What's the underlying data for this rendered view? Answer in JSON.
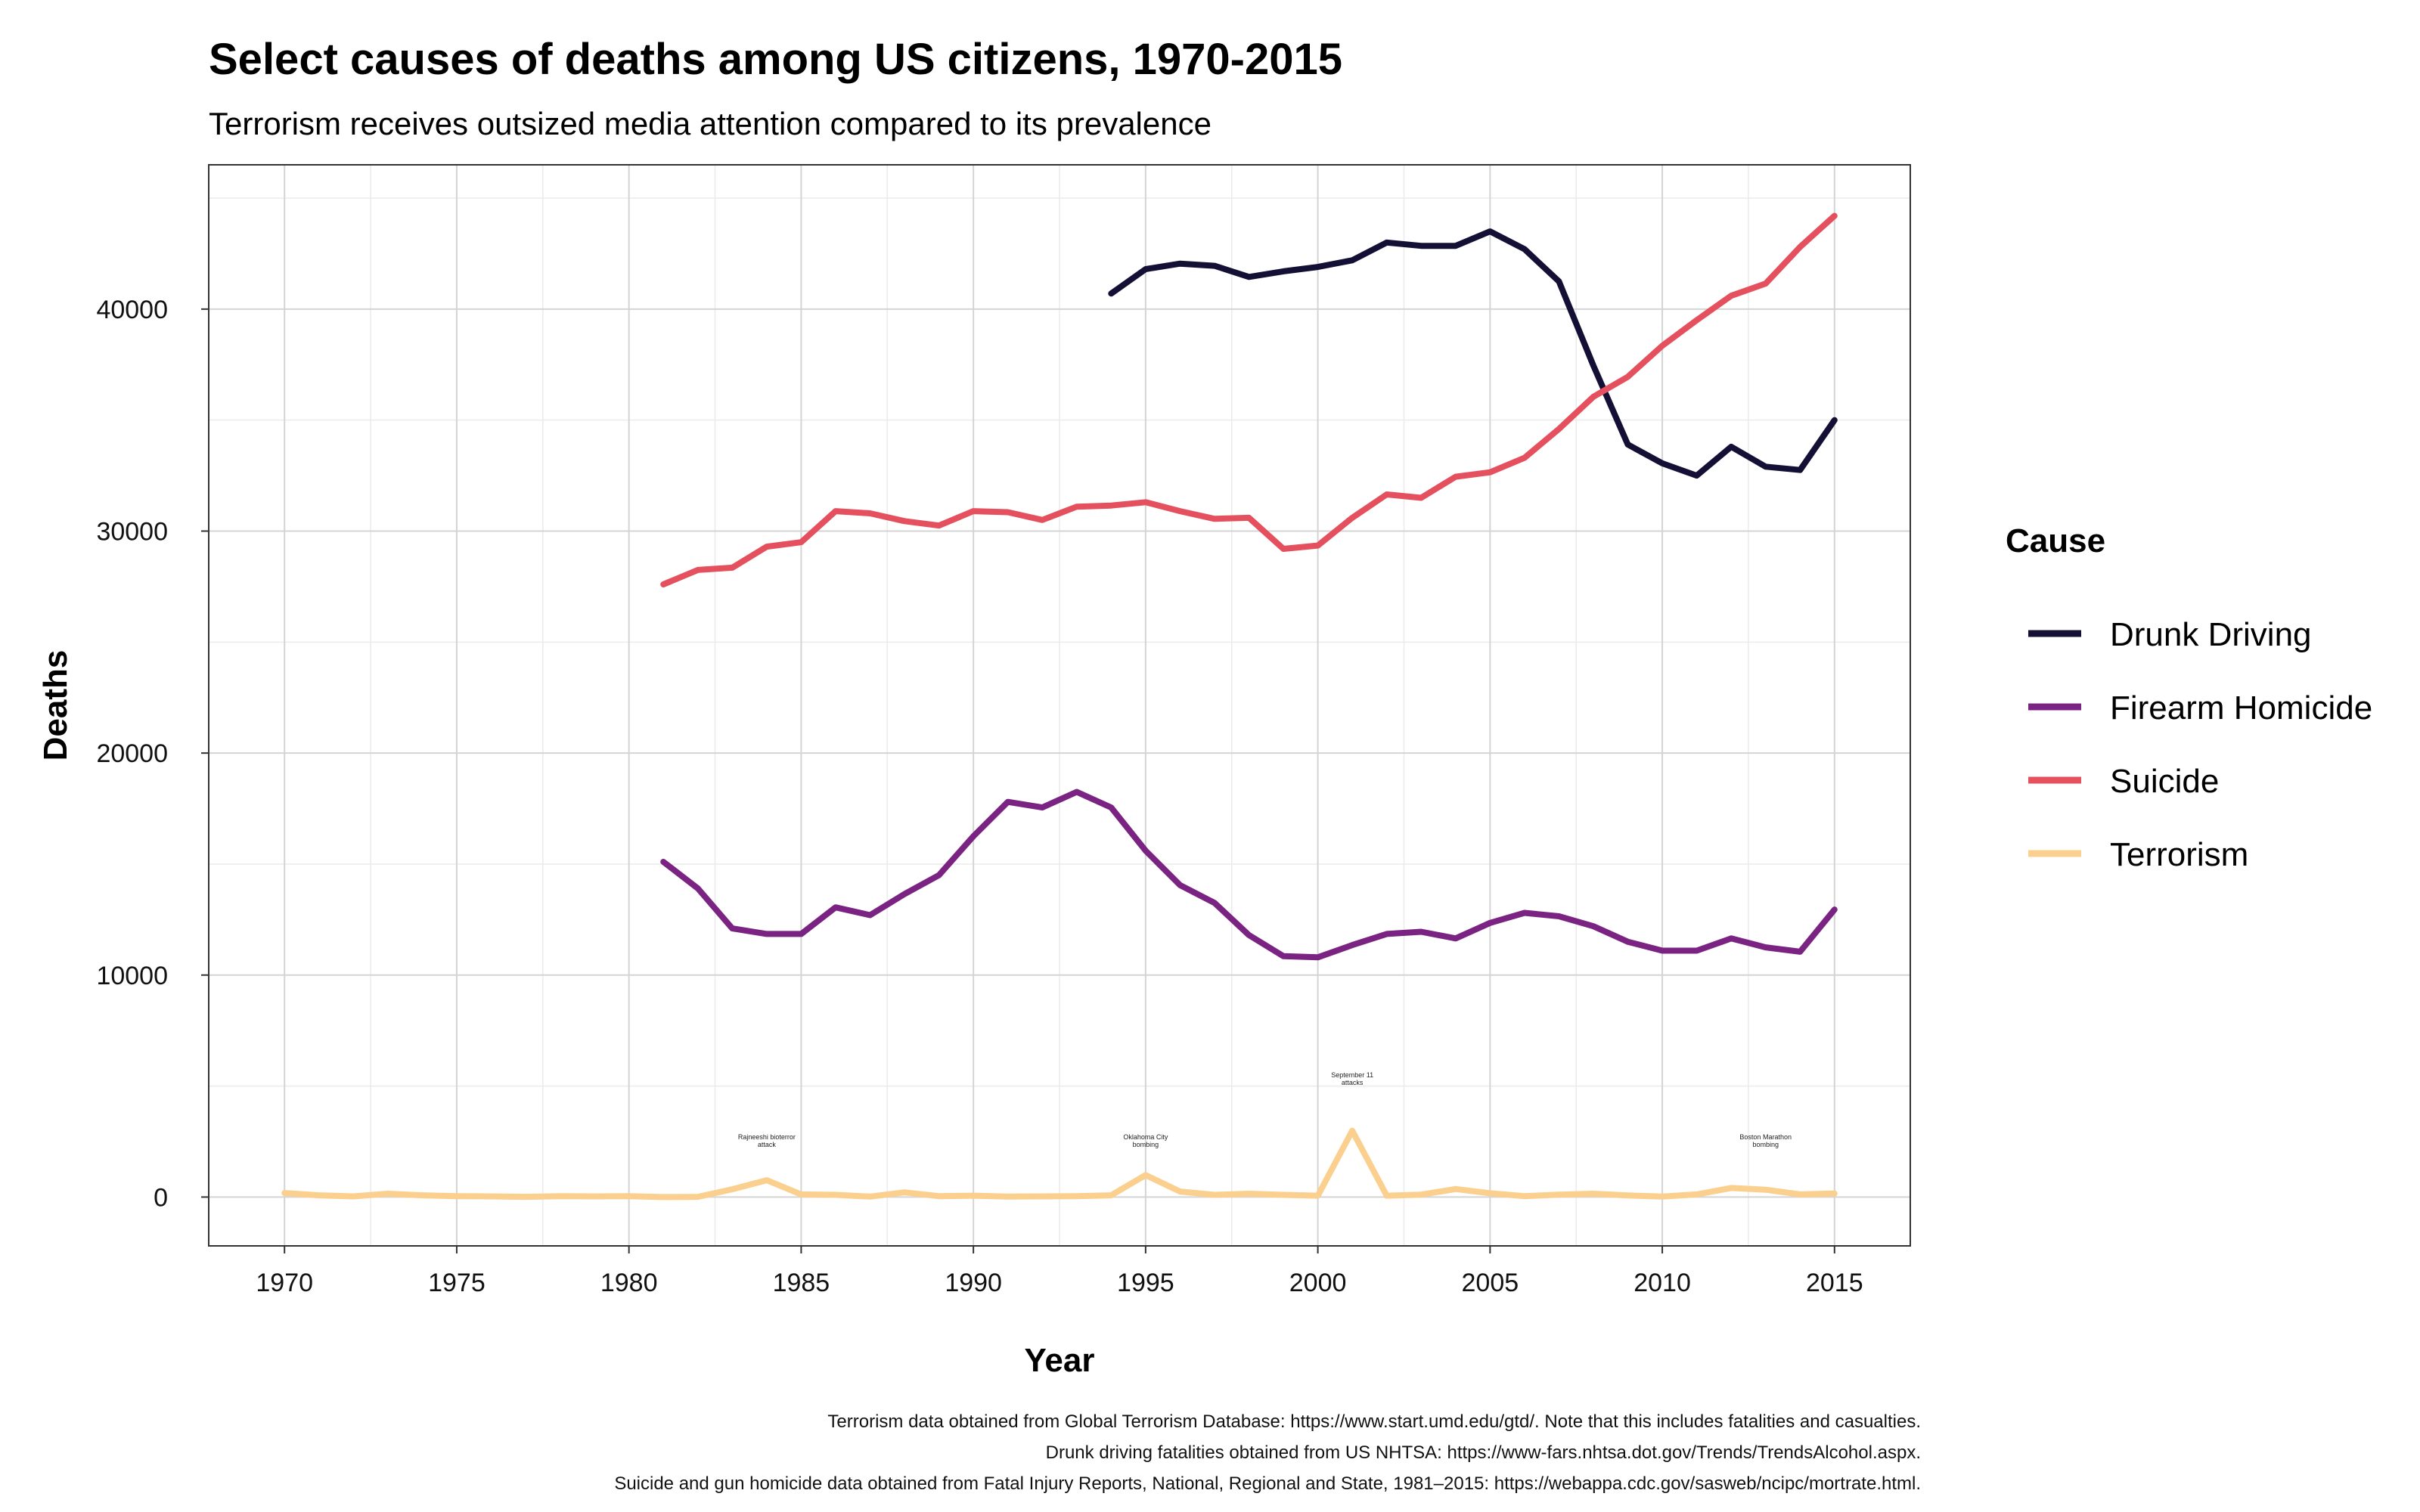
{
  "chart_data": {
    "type": "line",
    "title": "Select causes of deaths among US citizens, 1970-2015",
    "subtitle": "Terrorism receives outsized media attention compared to its prevalence",
    "xlabel": "Year",
    "ylabel": "Deaths",
    "xlim": [
      1967.8,
      2017.2
    ],
    "ylim": [
      -2200,
      46500
    ],
    "x_ticks": [
      1970,
      1975,
      1980,
      1985,
      1990,
      1995,
      2000,
      2005,
      2010,
      2015
    ],
    "y_ticks": [
      0,
      10000,
      20000,
      30000,
      40000
    ],
    "grid": true,
    "legend": {
      "title": "Cause",
      "position": "right"
    },
    "series": [
      {
        "name": "Drunk Driving",
        "color": "#140f35",
        "x": [
          1994,
          1995,
          1996,
          1997,
          1998,
          1999,
          2000,
          2001,
          2002,
          2003,
          2004,
          2005,
          2006,
          2007,
          2008,
          2009,
          2010,
          2011,
          2012,
          2013,
          2014,
          2015
        ],
        "values": [
          40700,
          41800,
          42050,
          41950,
          41450,
          41700,
          41900,
          42200,
          43000,
          42850,
          42850,
          43500,
          42700,
          41250,
          37450,
          33900,
          33050,
          32500,
          33800,
          32900,
          32750,
          35000
        ]
      },
      {
        "name": "Firearm Homicide",
        "color": "#7b2382",
        "x": [
          1981,
          1982,
          1983,
          1984,
          1985,
          1986,
          1987,
          1988,
          1989,
          1990,
          1991,
          1992,
          1993,
          1994,
          1995,
          1996,
          1997,
          1998,
          1999,
          2000,
          2001,
          2002,
          2003,
          2004,
          2005,
          2006,
          2007,
          2008,
          2009,
          2010,
          2011,
          2012,
          2013,
          2014,
          2015
        ],
        "values": [
          15100,
          13900,
          12100,
          11850,
          11850,
          13050,
          12700,
          13650,
          14500,
          16250,
          17800,
          17550,
          18250,
          17550,
          15600,
          14050,
          13250,
          11800,
          10850,
          10800,
          11350,
          11850,
          11950,
          11650,
          12350,
          12800,
          12650,
          12200,
          11500,
          11100,
          11100,
          11650,
          11250,
          11050,
          12950
        ]
      },
      {
        "name": "Suicide",
        "color": "#e5505e",
        "x": [
          1981,
          1982,
          1983,
          1984,
          1985,
          1986,
          1987,
          1988,
          1989,
          1990,
          1991,
          1992,
          1993,
          1994,
          1995,
          1996,
          1997,
          1998,
          1999,
          2000,
          2001,
          2002,
          2003,
          2004,
          2005,
          2006,
          2007,
          2008,
          2009,
          2010,
          2011,
          2012,
          2013,
          2014,
          2015
        ],
        "values": [
          27600,
          28250,
          28350,
          29300,
          29500,
          30900,
          30800,
          30450,
          30250,
          30900,
          30850,
          30500,
          31100,
          31150,
          31300,
          30900,
          30550,
          30600,
          29200,
          29350,
          30600,
          31650,
          31500,
          32450,
          32650,
          33300,
          34600,
          36050,
          36950,
          38350,
          39500,
          40600,
          41150,
          42800,
          44200
        ]
      },
      {
        "name": "Terrorism",
        "color": "#fbcf8e",
        "x": [
          1970,
          1971,
          1972,
          1973,
          1974,
          1975,
          1976,
          1977,
          1978,
          1979,
          1980,
          1981,
          1982,
          1983,
          1984,
          1985,
          1986,
          1987,
          1988,
          1989,
          1990,
          1991,
          1992,
          1993,
          1994,
          1995,
          1996,
          1997,
          1998,
          1999,
          2000,
          2001,
          2002,
          2003,
          2004,
          2005,
          2006,
          2007,
          2008,
          2009,
          2010,
          2011,
          2012,
          2013,
          2014,
          2015
        ],
        "values": [
          180,
          80,
          30,
          150,
          80,
          40,
          30,
          10,
          40,
          30,
          40,
          0,
          10,
          350,
          760,
          120,
          100,
          20,
          210,
          40,
          60,
          20,
          30,
          40,
          80,
          990,
          250,
          100,
          150,
          100,
          60,
          2990,
          60,
          110,
          360,
          170,
          40,
          110,
          150,
          70,
          20,
          120,
          410,
          330,
          120,
          160
        ]
      }
    ],
    "annotations": [
      {
        "text_lines": [
          "Rajneeshi bioterror",
          "attack"
        ],
        "x": 1984,
        "y": 2600
      },
      {
        "text_lines": [
          "Oklahoma City",
          "bombing"
        ],
        "x": 1995,
        "y": 2600
      },
      {
        "text_lines": [
          "September 11",
          "attacks"
        ],
        "x": 2001,
        "y": 5400
      },
      {
        "text_lines": [
          "Boston Marathon",
          "bombing"
        ],
        "x": 2013,
        "y": 2600
      }
    ],
    "captions": [
      "Terrorism data obtained from Global Terrorism Database: https://www.start.umd.edu/gtd/. Note that this includes fatalities and casualties.",
      "Drunk driving fatalities obtained from US NHTSA: https://www-fars.nhtsa.dot.gov/Trends/TrendsAlcohol.aspx.",
      "Suicide and gun homicide data obtained from Fatal Injury Reports, National, Regional and State, 1981–2015: https://webappa.cdc.gov/sasweb/ncipc/mortrate.html."
    ]
  }
}
